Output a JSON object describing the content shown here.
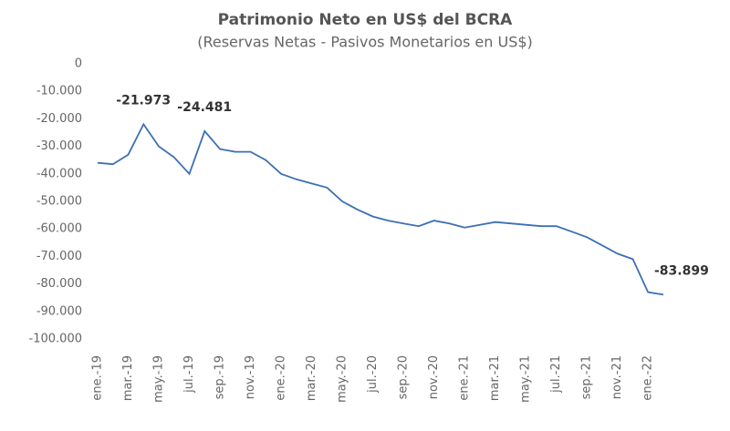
{
  "chart_data": {
    "type": "line",
    "title": "Patrimonio Neto en US$ del BCRA",
    "subtitle": "(Reservas Netas - Pasivos Monetarios en US$)",
    "categories": [
      "ene.-19",
      null,
      "mar.-19",
      null,
      "may.-19",
      null,
      "jul.-19",
      null,
      "sep.-19",
      null,
      "nov.-19",
      null,
      "ene.-20",
      null,
      "mar.-20",
      null,
      "may.-20",
      null,
      "jul.-20",
      null,
      "sep.-20",
      null,
      "nov.-20",
      null,
      "ene.-21",
      null,
      "mar.-21",
      null,
      "may.-21",
      null,
      "jul.-21",
      null,
      "sep.-21",
      null,
      "nov.-21",
      null,
      "ene.-22",
      null
    ],
    "series": [
      {
        "name": "Patrimonio Neto",
        "color": "#3d6fb4",
        "values": [
          -36000,
          -36500,
          -33000,
          -21973,
          -30000,
          -34000,
          -40000,
          -24481,
          -31000,
          -32000,
          -32000,
          -35000,
          -40000,
          -42000,
          -43500,
          -45000,
          -50000,
          -53000,
          -55500,
          -57000,
          -58000,
          -59000,
          -57000,
          -58000,
          -59500,
          -58500,
          -57500,
          -58000,
          -58500,
          -59000,
          -59000,
          -61000,
          -63000,
          -66000,
          -69000,
          -71000,
          -83000,
          -83899
        ],
        "value_labels": [
          null,
          null,
          null,
          "-21.973",
          null,
          null,
          null,
          "-24.481",
          null,
          null,
          null,
          null,
          null,
          null,
          null,
          null,
          null,
          null,
          null,
          null,
          null,
          null,
          null,
          null,
          null,
          null,
          null,
          null,
          null,
          null,
          null,
          null,
          null,
          null,
          null,
          null,
          null,
          "-83.899"
        ]
      }
    ],
    "ylim": [
      -100000,
      0
    ],
    "yticks": [
      0,
      {
        "value": -10000,
        "label": "-10.000"
      },
      {
        "value": -20000,
        "label": "-20.000"
      },
      {
        "value": -30000,
        "label": "-30.000"
      },
      {
        "value": -40000,
        "label": "-40.000"
      },
      {
        "value": -50000,
        "label": "-50.000"
      },
      {
        "value": -60000,
        "label": "-60.000"
      },
      {
        "value": -70000,
        "label": "-70.000"
      },
      {
        "value": -80000,
        "label": "-80.000"
      },
      {
        "value": -90000,
        "label": "-90.000"
      },
      {
        "value": -100000,
        "label": "-100.000"
      }
    ],
    "grid": false
  }
}
